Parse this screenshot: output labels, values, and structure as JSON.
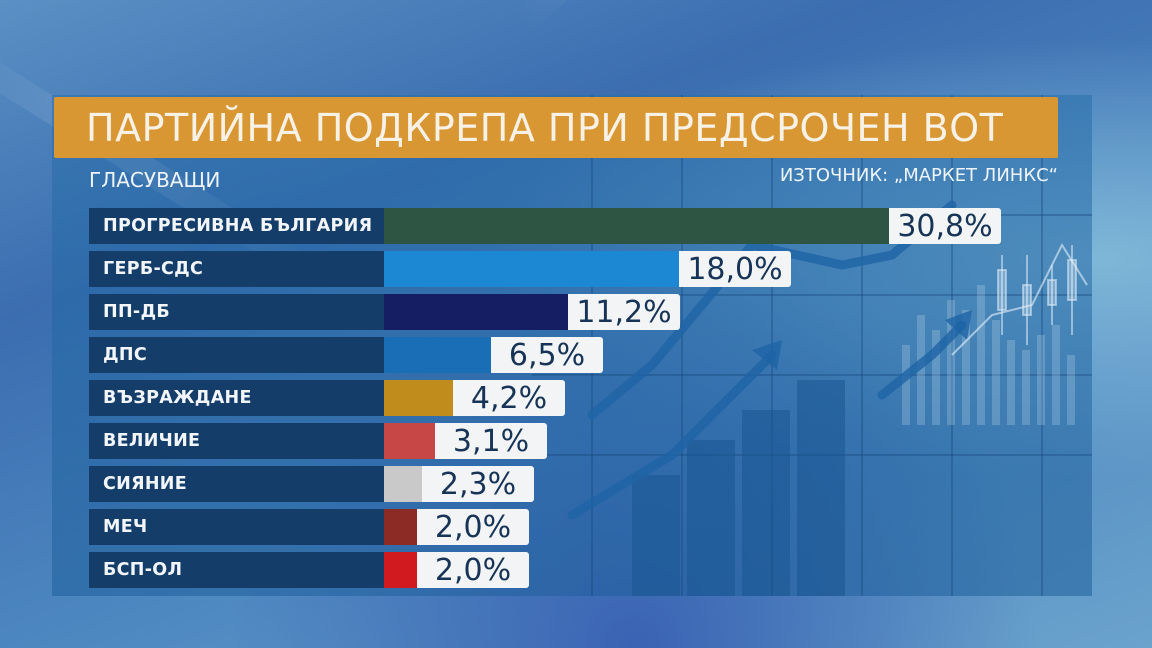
{
  "header": {
    "title": "ПАРТИЙНА ПОДКРЕПА ПРИ ПРЕДСРОЧЕН ВОТ",
    "subtitle": "ГЛАСУВАЩИ",
    "source": "ИЗТОЧНИК: „МАРКЕТ ЛИНКС“"
  },
  "colors": {
    "title_bar": "#d99733",
    "label_bg": "#143d6a",
    "value_bg": "#f2f4f6",
    "value_text": "#173457"
  },
  "rows": [
    {
      "label": "ПРОГРЕСИВНА БЪЛГАРИЯ",
      "value": "30,8%",
      "color": "#2e5543"
    },
    {
      "label": "ГЕРБ-СДС",
      "value": "18,0%",
      "color": "#1c88d4"
    },
    {
      "label": "ПП-ДБ",
      "value": "11,2%",
      "color": "#151d63"
    },
    {
      "label": "ДПС",
      "value": "6,5%",
      "color": "#1a6eb6"
    },
    {
      "label": "ВЪЗРАЖДАНЕ",
      "value": "4,2%",
      "color": "#c08c1c"
    },
    {
      "label": "ВЕЛИЧИЕ",
      "value": "3,1%",
      "color": "#c74646"
    },
    {
      "label": "СИЯНИЕ",
      "value": "2,3%",
      "color": "#c9c9c9"
    },
    {
      "label": "МЕЧ",
      "value": "2,0%",
      "color": "#8c2a25"
    },
    {
      "label": "БСП-ОЛ",
      "value": "2,0%",
      "color": "#d01a1f"
    }
  ],
  "chart_data": {
    "type": "bar",
    "orientation": "horizontal",
    "title": "ПАРТИЙНА ПОДКРЕПА ПРИ ПРЕДСРОЧЕН ВОТ",
    "subtitle": "ГЛАСУВАЩИ",
    "source": "ИЗТОЧНИК: „МАРКЕТ ЛИНКС“",
    "categories": [
      "ПРОГРЕСИВНА БЪЛГАРИЯ",
      "ГЕРБ-СДС",
      "ПП-ДБ",
      "ДПС",
      "ВЪЗРАЖДАНЕ",
      "ВЕЛИЧИЕ",
      "СИЯНИЕ",
      "МЕЧ",
      "БСП-ОЛ"
    ],
    "values": [
      30.8,
      18.0,
      11.2,
      6.5,
      4.2,
      3.1,
      2.3,
      2.0,
      2.0
    ],
    "unit": "%",
    "colors": [
      "#2e5543",
      "#1c88d4",
      "#151d63",
      "#1a6eb6",
      "#c08c1c",
      "#c74646",
      "#c9c9c9",
      "#8c2a25",
      "#d01a1f"
    ],
    "xlabel": "",
    "ylabel": "",
    "grid": false,
    "legend": "none"
  }
}
